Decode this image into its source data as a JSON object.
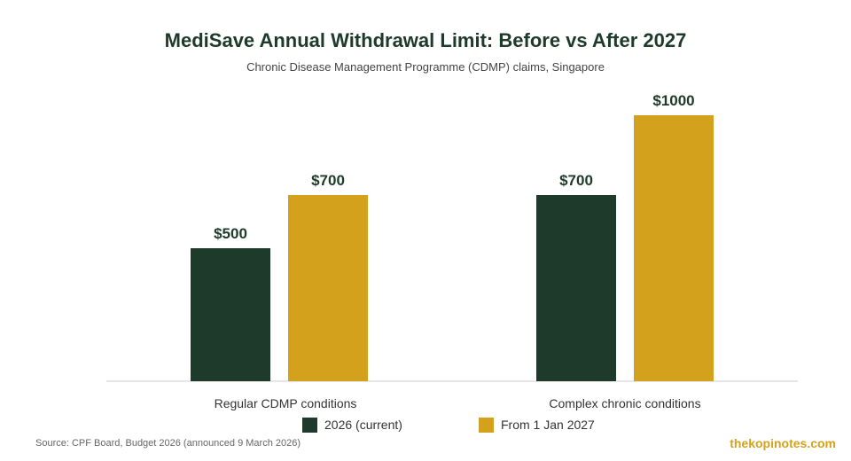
{
  "chart_data": {
    "type": "bar",
    "title": "MediSave Annual Withdrawal Limit: Before vs After 2027",
    "subtitle": "Chronic Disease Management Programme (CDMP) claims, Singapore",
    "categories": [
      "Regular CDMP conditions",
      "Complex chronic conditions"
    ],
    "series": [
      {
        "name": "2026 (current)",
        "values": [
          500,
          700
        ],
        "labels": [
          "$500",
          "$700"
        ],
        "color": "#1e3a2a"
      },
      {
        "name": "From 1 Jan 2027",
        "values": [
          700,
          1000
        ],
        "labels": [
          "$700",
          "$1000"
        ],
        "color": "#d4a11c"
      }
    ],
    "ylim": [
      0,
      1000
    ],
    "grid": false,
    "legend": "bottom",
    "xlabel": "",
    "ylabel": ""
  },
  "footer": {
    "source": "Source: CPF Board, Budget 2026 (announced 9 March 2026)",
    "brand": "thekopinotes.com"
  },
  "colors": {
    "title": "#1e3a2a",
    "dark_green": "#1e3a2a",
    "gold": "#d4a11c",
    "axis": "#cccccc"
  }
}
